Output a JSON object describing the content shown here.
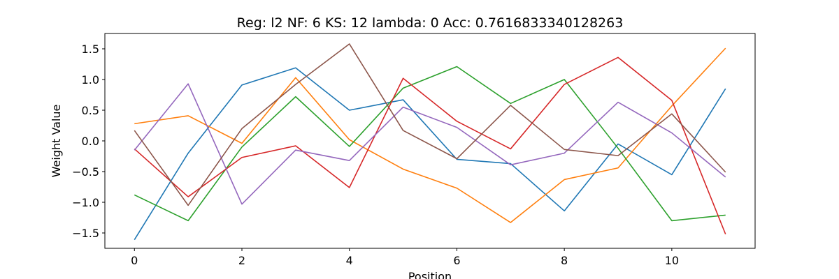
{
  "chart_data": {
    "type": "line",
    "title": "Reg: l2  NF: 6  KS: 12  lambda: 0 Acc: 0.7616833340128263",
    "xlabel": "Position",
    "ylabel": "Weight Value",
    "xlim": [
      -0.55,
      11.55
    ],
    "ylim": [
      -1.75,
      1.75
    ],
    "xticks": [
      0,
      2,
      4,
      6,
      8,
      10
    ],
    "yticks": [
      -1.5,
      -1.0,
      -0.5,
      0.0,
      0.5,
      1.0,
      1.5
    ],
    "x": [
      0,
      1,
      2,
      3,
      4,
      5,
      6,
      7,
      8,
      9,
      10,
      11
    ],
    "grid": false,
    "series": [
      {
        "color": "#1f77b4",
        "values": [
          -1.61,
          -0.2,
          0.91,
          1.19,
          0.5,
          0.67,
          -0.3,
          -0.37,
          -1.14,
          -0.05,
          -0.55,
          0.85
        ]
      },
      {
        "color": "#ff7f0e",
        "values": [
          0.28,
          0.41,
          -0.04,
          1.03,
          0.02,
          -0.46,
          -0.77,
          -1.33,
          -0.63,
          -0.44,
          0.57,
          1.51
        ]
      },
      {
        "color": "#2ca02c",
        "values": [
          -0.88,
          -1.3,
          -0.1,
          0.72,
          -0.09,
          0.86,
          1.21,
          0.61,
          1.0,
          -0.12,
          -1.3,
          -1.21
        ]
      },
      {
        "color": "#d62728",
        "values": [
          -0.13,
          -0.91,
          -0.27,
          -0.08,
          -0.76,
          1.02,
          0.32,
          -0.13,
          0.92,
          1.36,
          0.66,
          -1.52
        ]
      },
      {
        "color": "#9467bd",
        "values": [
          -0.15,
          0.93,
          -1.03,
          -0.15,
          -0.32,
          0.55,
          0.22,
          -0.39,
          -0.2,
          0.63,
          0.13,
          -0.59
        ]
      },
      {
        "color": "#8c564b",
        "values": [
          0.17,
          -1.05,
          0.2,
          0.92,
          1.58,
          0.17,
          -0.29,
          0.58,
          -0.14,
          -0.24,
          0.44,
          -0.51
        ]
      }
    ]
  }
}
